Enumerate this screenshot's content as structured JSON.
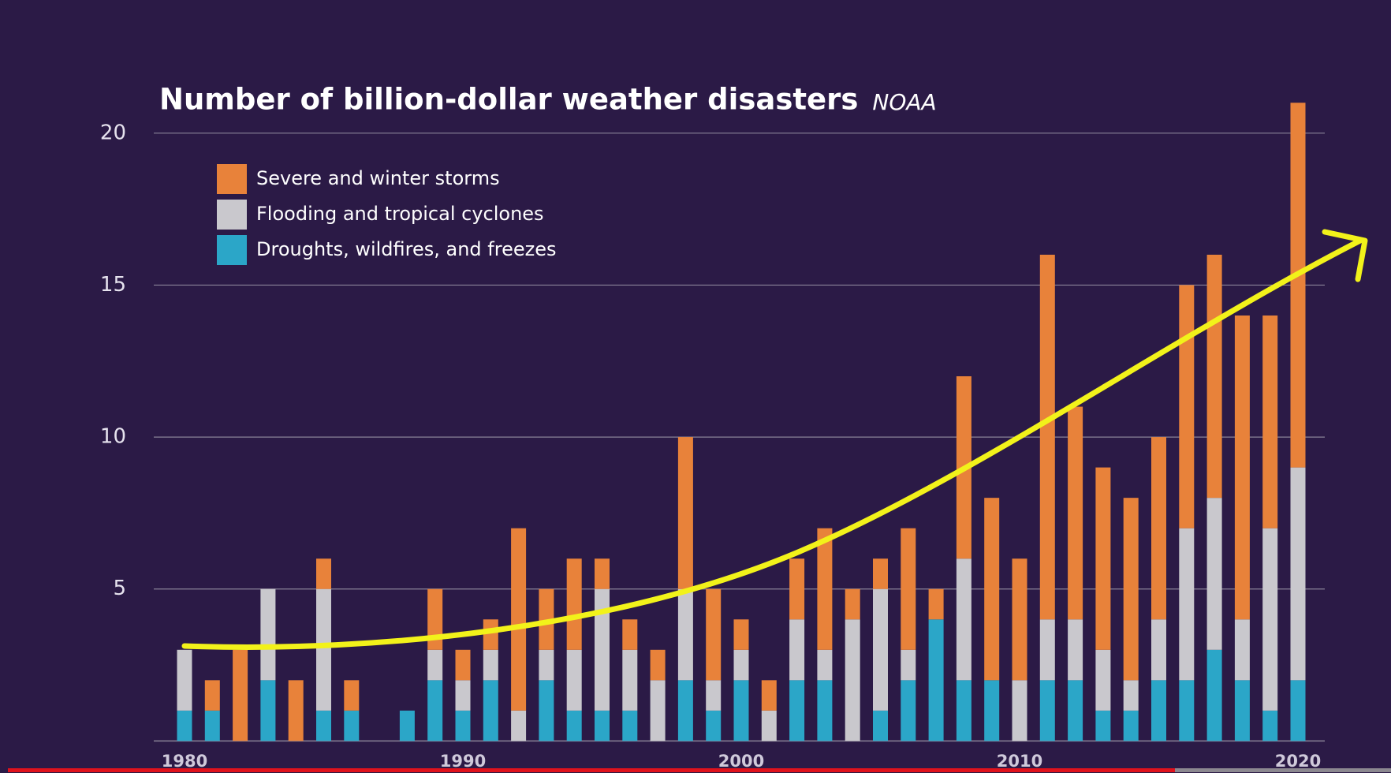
{
  "chart_data": {
    "type": "stacked_bar",
    "title": "Number of billion-dollar weather disasters",
    "subtitle": "NOAA",
    "categories": [
      "1980",
      null,
      null,
      null,
      null,
      null,
      null,
      null,
      null,
      null,
      "1990",
      null,
      null,
      null,
      null,
      null,
      null,
      null,
      null,
      null,
      "2000",
      null,
      null,
      null,
      null,
      null,
      null,
      null,
      null,
      null,
      "2010",
      null,
      null,
      null,
      null,
      null,
      null,
      null,
      null,
      null,
      "2020"
    ],
    "series": [
      {
        "name": "Severe and winter storms",
        "color": "#e8823a",
        "values": [
          0,
          1,
          3,
          0,
          2,
          1,
          1,
          0,
          0,
          2,
          1,
          1,
          6,
          2,
          3,
          1,
          1,
          1,
          5,
          3,
          1,
          1,
          2,
          4,
          1,
          1,
          4,
          1,
          6,
          6,
          4,
          12,
          7,
          6,
          6,
          6,
          8,
          8,
          10,
          7,
          12
        ]
      },
      {
        "name": "Flooding and tropical cyclones",
        "color": "#c9c8cd",
        "values": [
          2,
          0,
          0,
          3,
          0,
          4,
          0,
          0,
          0,
          1,
          1,
          1,
          1,
          1,
          2,
          4,
          2,
          2,
          3,
          1,
          1,
          1,
          2,
          1,
          4,
          4,
          1,
          0,
          4,
          0,
          2,
          2,
          2,
          2,
          1,
          2,
          5,
          5,
          2,
          6,
          7
        ]
      },
      {
        "name": "Droughts, wildfires, and freezes",
        "color": "#2ba6c8",
        "values": [
          1,
          1,
          0,
          2,
          0,
          1,
          1,
          0,
          1,
          2,
          1,
          2,
          0,
          2,
          1,
          1,
          1,
          0,
          2,
          1,
          2,
          0,
          2,
          2,
          0,
          1,
          2,
          4,
          2,
          2,
          0,
          2,
          2,
          1,
          1,
          2,
          2,
          3,
          2,
          1,
          2
        ]
      }
    ],
    "ylim": [
      0,
      21.5
    ],
    "yticks": [
      5,
      10,
      15,
      20
    ],
    "grid": true,
    "legend": "top-left"
  }
}
